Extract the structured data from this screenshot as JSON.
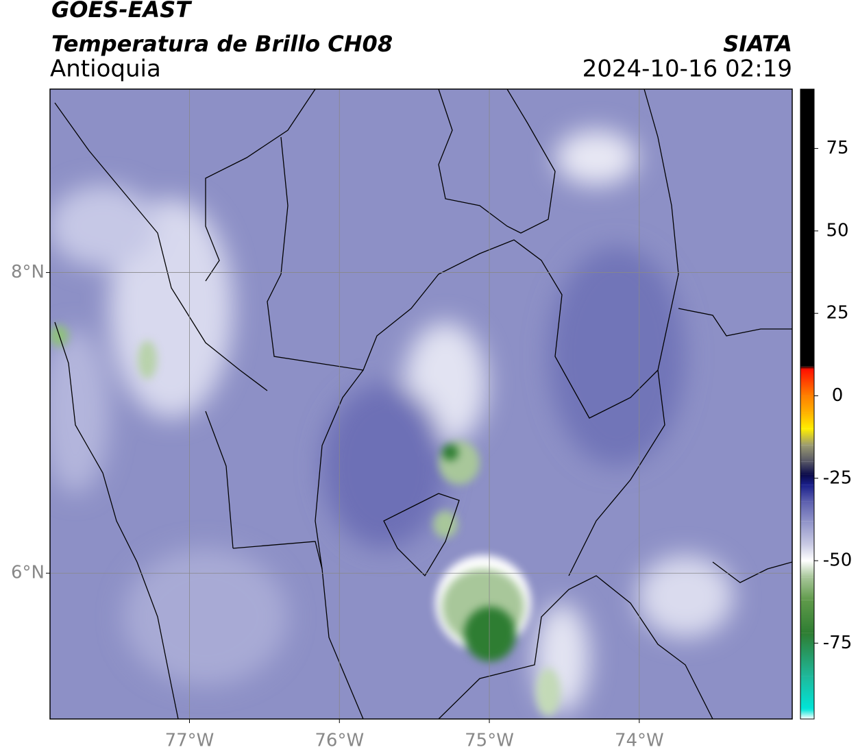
{
  "header": {
    "title": "GOES-EAST",
    "subtitle": "Temperatura de Brillo CH08",
    "region": "Antioquia",
    "source": "SIATA",
    "datetime": "2024-10-16 02:19"
  },
  "map": {
    "xlim": [
      -77.93,
      -72.98
    ],
    "ylim": [
      5.03,
      9.22
    ],
    "xticks": [
      {
        "value": -77,
        "label": "77°W"
      },
      {
        "value": -76,
        "label": "76°W"
      },
      {
        "value": -75,
        "label": "75°W"
      },
      {
        "value": -74,
        "label": "74°W"
      }
    ],
    "yticks": [
      {
        "value": 8,
        "label": "8°N"
      },
      {
        "value": 6,
        "label": "6°N"
      }
    ],
    "grid": true
  },
  "colorbar": {
    "ticks": [
      75,
      50,
      25,
      0,
      -25,
      -50,
      -75
    ],
    "stops": [
      {
        "value": -98,
        "color": "#ffffff"
      },
      {
        "value": -95,
        "color": "#00e5d8"
      },
      {
        "value": -85,
        "color": "#1fb89a"
      },
      {
        "value": -72,
        "color": "#2e7d32"
      },
      {
        "value": -62,
        "color": "#5f9a4a"
      },
      {
        "value": -55,
        "color": "#a8c79a"
      },
      {
        "value": -50,
        "color": "#ffffff"
      },
      {
        "value": -45,
        "color": "#c8c9e3"
      },
      {
        "value": -38,
        "color": "#8f92c8"
      },
      {
        "value": -32,
        "color": "#5c5fae"
      },
      {
        "value": -27,
        "color": "#1a1f8a"
      },
      {
        "value": -24,
        "color": "#0a0a4a"
      },
      {
        "value": -20,
        "color": "#555566"
      },
      {
        "value": -15,
        "color": "#9a9a70"
      },
      {
        "value": -10,
        "color": "#ffee00"
      },
      {
        "value": -5,
        "color": "#ffb000"
      },
      {
        "value": 0,
        "color": "#ff8000"
      },
      {
        "value": 8,
        "color": "#ff1000"
      },
      {
        "value": 9,
        "color": "#000000"
      },
      {
        "value": 93,
        "color": "#000000"
      }
    ]
  }
}
